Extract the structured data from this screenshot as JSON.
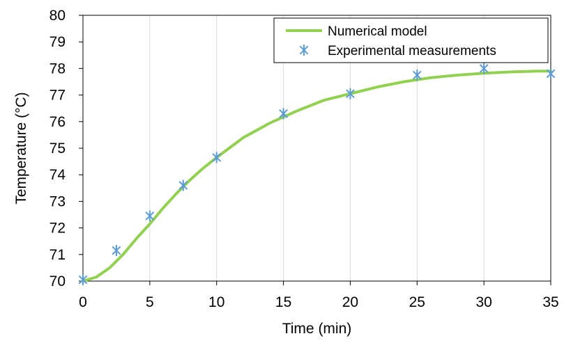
{
  "chart_data": {
    "type": "line",
    "xlabel": "Time (min)",
    "ylabel": "Temperature (°C)",
    "xlim": [
      0,
      35
    ],
    "ylim": [
      70,
      80
    ],
    "xticks": [
      0,
      5,
      10,
      15,
      20,
      25,
      30,
      35
    ],
    "yticks": [
      70,
      71,
      72,
      73,
      74,
      75,
      76,
      77,
      78,
      79,
      80
    ],
    "grid": "vertical",
    "legend_position": "top-right",
    "series": [
      {
        "name": "Numerical model",
        "type": "line",
        "color": "#92d050",
        "x": [
          0,
          1,
          2,
          3,
          4,
          5,
          6,
          7,
          8,
          9,
          10,
          12,
          14,
          16,
          18,
          20,
          22,
          24,
          26,
          28,
          30,
          32,
          34,
          35
        ],
        "y": [
          70.0,
          70.15,
          70.5,
          71.0,
          71.6,
          72.15,
          72.75,
          73.3,
          73.8,
          74.25,
          74.65,
          75.4,
          75.95,
          76.4,
          76.8,
          77.05,
          77.3,
          77.5,
          77.65,
          77.75,
          77.82,
          77.87,
          77.9,
          77.9
        ]
      },
      {
        "name": "Experimental measurements",
        "type": "scatter",
        "marker": "asterisk",
        "color": "#5b9bd5",
        "x": [
          0,
          2.5,
          5,
          7.5,
          10,
          15,
          20,
          25,
          30,
          35
        ],
        "y": [
          70.05,
          71.15,
          72.45,
          73.6,
          74.65,
          76.3,
          77.05,
          77.75,
          78.0,
          77.8
        ]
      }
    ]
  }
}
